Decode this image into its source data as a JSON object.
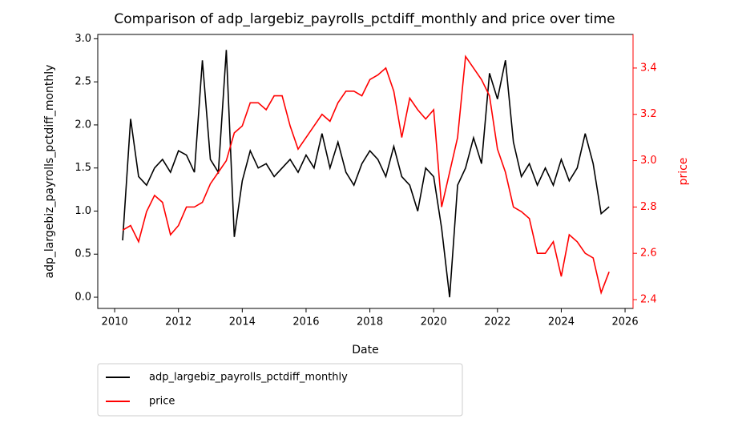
{
  "chart_data": {
    "type": "line",
    "title": "Comparison of adp_largebiz_payrolls_pctdiff_monthly and price over time",
    "x_label": "Date",
    "y_label": "adp_largebiz_payrolls_pctdiff_monthly",
    "y2_label": "price",
    "x": [
      2010.25,
      2010.5,
      2010.75,
      2011,
      2011.25,
      2011.5,
      2011.75,
      2012,
      2012.25,
      2012.5,
      2012.75,
      2013,
      2013.25,
      2013.5,
      2013.75,
      2014,
      2014.25,
      2014.5,
      2014.75,
      2015,
      2015.25,
      2015.5,
      2015.75,
      2016,
      2016.25,
      2016.5,
      2016.75,
      2017,
      2017.25,
      2017.5,
      2017.75,
      2018,
      2018.25,
      2018.5,
      2018.75,
      2019,
      2019.25,
      2019.5,
      2019.75,
      2020,
      2020.25,
      2020.5,
      2020.75,
      2021,
      2021.25,
      2021.5,
      2021.75,
      2022,
      2022.25,
      2022.5,
      2022.75,
      2023,
      2023.25,
      2023.5,
      2023.75,
      2024,
      2024.25,
      2024.5,
      2024.75,
      2025,
      2025.25,
      2025.5
    ],
    "series": [
      {
        "name": "adp_largebiz_payrolls_pctdiff_monthly",
        "color": "#000000",
        "axis": "y",
        "values": [
          0.66,
          2.07,
          1.4,
          1.3,
          1.5,
          1.6,
          1.45,
          1.7,
          1.65,
          1.45,
          2.75,
          1.6,
          1.45,
          2.87,
          0.7,
          1.35,
          1.7,
          1.5,
          1.55,
          1.4,
          1.5,
          1.6,
          1.45,
          1.65,
          1.5,
          1.9,
          1.5,
          1.8,
          1.45,
          1.3,
          1.55,
          1.7,
          1.6,
          1.4,
          1.75,
          1.4,
          1.3,
          1.0,
          1.5,
          1.4,
          0.8,
          0.0,
          1.3,
          1.5,
          1.85,
          1.55,
          2.6,
          2.3,
          2.75,
          1.8,
          1.4,
          1.55,
          1.3,
          1.5,
          1.3,
          1.6,
          1.35,
          1.5,
          1.9,
          1.55,
          0.97,
          1.05
        ]
      },
      {
        "name": "price",
        "color": "#ff0000",
        "axis": "y2",
        "values": [
          2.7,
          2.72,
          2.65,
          2.78,
          2.85,
          2.82,
          2.68,
          2.72,
          2.8,
          2.8,
          2.82,
          2.9,
          2.95,
          3.0,
          3.12,
          3.15,
          3.25,
          3.25,
          3.22,
          3.28,
          3.28,
          3.15,
          3.05,
          3.1,
          3.15,
          3.2,
          3.17,
          3.25,
          3.3,
          3.3,
          3.28,
          3.35,
          3.37,
          3.4,
          3.3,
          3.1,
          3.27,
          3.22,
          3.18,
          3.22,
          2.8,
          2.95,
          3.1,
          3.45,
          3.4,
          3.35,
          3.28,
          3.05,
          2.95,
          2.8,
          2.78,
          2.75,
          2.6,
          2.6,
          2.65,
          2.5,
          2.68,
          2.65,
          2.6,
          2.58,
          2.43,
          2.52
        ]
      }
    ],
    "xlim": [
      2009.47,
      2026.25
    ],
    "xticks": [
      2010,
      2012,
      2014,
      2016,
      2018,
      2020,
      2022,
      2024,
      2026
    ],
    "ylim": [
      -0.13,
      3.05
    ],
    "yticks": [
      {
        "value": 0,
        "label": "0.0"
      },
      0.5,
      {
        "value": 1,
        "label": "1.0"
      },
      1.5,
      {
        "value": 2,
        "label": "2.0"
      },
      2.5,
      {
        "value": 3,
        "label": "3.0"
      }
    ],
    "y2lim": [
      2.362,
      3.545
    ],
    "y2ticks": [
      2.4,
      2.6,
      2.8,
      {
        "value": 3,
        "label": "3.0"
      },
      3.2,
      3.4
    ],
    "legend": "below"
  }
}
